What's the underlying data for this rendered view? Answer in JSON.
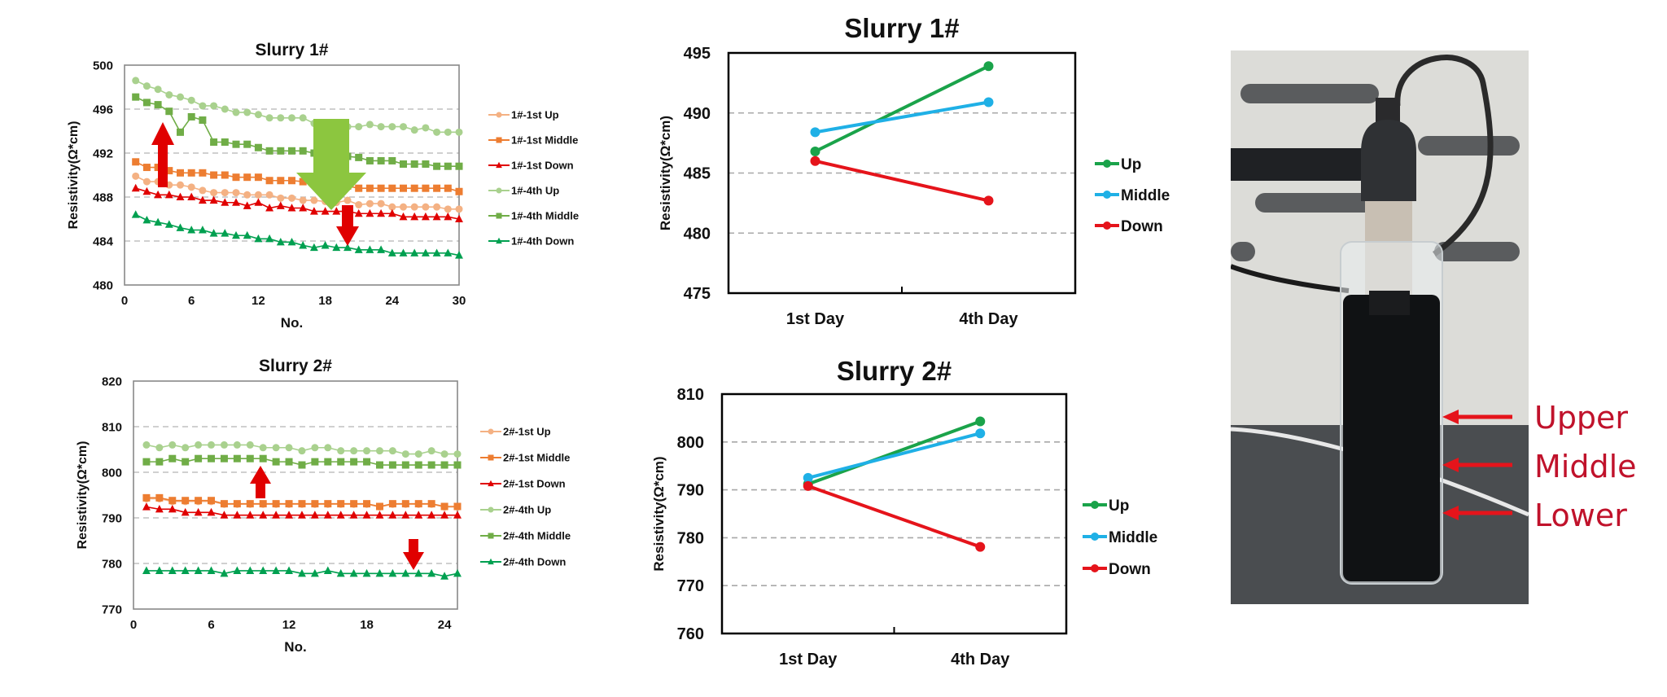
{
  "chart_data": [
    {
      "id": "tl",
      "type": "line",
      "title": "Slurry 1#",
      "xlabel": "No.",
      "ylabel": "Resistivity(Ω*cm)",
      "xlim": [
        0,
        30
      ],
      "ylim": [
        480,
        500
      ],
      "xticks": [
        0,
        6,
        12,
        18,
        24,
        30
      ],
      "yticks": [
        480,
        484,
        488,
        492,
        496,
        500
      ],
      "grid": "horizontal-dashed",
      "legend_position": "right",
      "x": [
        1,
        2,
        3,
        4,
        5,
        6,
        7,
        8,
        9,
        10,
        11,
        12,
        13,
        14,
        15,
        16,
        17,
        18,
        19,
        20,
        21,
        22,
        23,
        24,
        25,
        26,
        27,
        28,
        29,
        30
      ],
      "series": [
        {
          "name": "1#-1st Up",
          "color": "#f4b183",
          "marker": "circle",
          "values": [
            489.9,
            489.4,
            489.4,
            489.1,
            489.1,
            488.9,
            488.6,
            488.4,
            488.4,
            488.4,
            488.2,
            488.2,
            488.2,
            487.9,
            487.9,
            487.7,
            487.7,
            487.6,
            487.5,
            487.7,
            487.3,
            487.4,
            487.4,
            487.1,
            487.1,
            487.1,
            487.1,
            487.1,
            486.9,
            486.9
          ]
        },
        {
          "name": "1#-1st Middle",
          "color": "#ed7d31",
          "marker": "square",
          "values": [
            491.2,
            490.7,
            490.7,
            490.4,
            490.2,
            490.2,
            490.2,
            490.0,
            490.0,
            489.8,
            489.8,
            489.8,
            489.5,
            489.5,
            489.5,
            489.4,
            489.5,
            489.3,
            489.1,
            489.0,
            488.8,
            488.8,
            488.8,
            488.8,
            488.8,
            488.8,
            488.8,
            488.8,
            488.8,
            488.5
          ]
        },
        {
          "name": "1#-1st Down",
          "color": "#e00000",
          "marker": "triangle",
          "values": [
            488.8,
            488.5,
            488.2,
            488.2,
            488.0,
            488.0,
            487.7,
            487.7,
            487.5,
            487.5,
            487.2,
            487.5,
            487.0,
            487.2,
            487.0,
            487.0,
            486.7,
            486.7,
            486.7,
            486.7,
            486.5,
            486.5,
            486.5,
            486.5,
            486.2,
            486.2,
            486.2,
            486.2,
            486.2,
            486.0
          ]
        },
        {
          "name": "1#-4th Up",
          "color": "#a9d18e",
          "marker": "circle",
          "values": [
            498.6,
            498.1,
            497.8,
            497.3,
            497.1,
            496.8,
            496.3,
            496.3,
            496.0,
            495.7,
            495.7,
            495.5,
            495.2,
            495.2,
            495.2,
            495.2,
            494.7,
            494.7,
            494.5,
            494.4,
            494.4,
            494.6,
            494.4,
            494.4,
            494.4,
            494.1,
            494.3,
            493.9,
            493.9,
            493.9
          ]
        },
        {
          "name": "1#-4th Middle",
          "color": "#70ad47",
          "marker": "square",
          "values": [
            497.1,
            496.6,
            496.4,
            495.8,
            493.9,
            495.3,
            495.0,
            493.0,
            493.0,
            492.8,
            492.8,
            492.5,
            492.2,
            492.2,
            492.2,
            492.2,
            492.0,
            492.0,
            491.8,
            491.7,
            491.6,
            491.3,
            491.3,
            491.3,
            491.0,
            491.0,
            491.0,
            490.8,
            490.8,
            490.8
          ]
        },
        {
          "name": "1#-4th Down",
          "color": "#00a050",
          "marker": "triangle",
          "values": [
            486.4,
            485.9,
            485.7,
            485.5,
            485.2,
            485.0,
            485.0,
            484.7,
            484.7,
            484.5,
            484.5,
            484.2,
            484.2,
            483.9,
            483.9,
            483.6,
            483.4,
            483.6,
            483.4,
            483.4,
            483.2,
            483.2,
            483.2,
            482.9,
            482.9,
            482.9,
            482.9,
            482.9,
            482.9,
            482.7
          ]
        }
      ],
      "annotations": [
        "red-up-arrow",
        "green-down-arrow",
        "red-down-arrow"
      ]
    },
    {
      "id": "bl",
      "type": "line",
      "title": "Slurry 2#",
      "xlabel": "No.",
      "ylabel": "Resistivity(Ω*cm)",
      "xlim": [
        0,
        25
      ],
      "ylim": [
        770,
        820
      ],
      "xticks": [
        0,
        6,
        12,
        18,
        24
      ],
      "yticks": [
        770,
        780,
        790,
        800,
        810,
        820
      ],
      "grid": "horizontal-dashed",
      "legend_position": "right",
      "x": [
        1,
        2,
        3,
        4,
        5,
        6,
        7,
        8,
        9,
        10,
        11,
        12,
        13,
        14,
        15,
        16,
        17,
        18,
        19,
        20,
        21,
        22,
        23,
        24,
        25
      ],
      "series": [
        {
          "name": "2#-1st Up",
          "color": "#f4b183",
          "marker": "circle",
          "values": [
            794.2,
            794.2,
            793.6,
            793.6,
            793.6,
            793.6,
            793.0,
            793.0,
            793.0,
            793.0,
            793.0,
            793.0,
            793.0,
            793.0,
            793.0,
            793.0,
            793.0,
            793.0,
            792.4,
            793.0,
            793.0,
            793.0,
            793.0,
            792.4,
            792.4
          ]
        },
        {
          "name": "2#-1st Middle",
          "color": "#ed7d31",
          "marker": "square",
          "values": [
            794.4,
            794.4,
            793.8,
            793.8,
            793.8,
            793.8,
            793.1,
            793.1,
            793.1,
            793.1,
            793.1,
            793.1,
            793.1,
            793.1,
            793.1,
            793.1,
            793.1,
            793.1,
            792.5,
            793.1,
            793.1,
            793.1,
            793.1,
            792.5,
            792.5
          ]
        },
        {
          "name": "2#-1st Down",
          "color": "#e00000",
          "marker": "triangle",
          "values": [
            792.4,
            791.9,
            791.9,
            791.2,
            791.2,
            791.2,
            790.6,
            790.6,
            790.6,
            790.6,
            790.6,
            790.6,
            790.6,
            790.6,
            790.6,
            790.6,
            790.6,
            790.6,
            790.6,
            790.6,
            790.6,
            790.6,
            790.6,
            790.6,
            790.6
          ]
        },
        {
          "name": "2#-4th Up",
          "color": "#a9d18e",
          "marker": "circle",
          "values": [
            806.0,
            805.4,
            806.0,
            805.4,
            806.0,
            806.0,
            806.0,
            806.0,
            806.0,
            805.4,
            805.4,
            805.4,
            804.7,
            805.4,
            805.4,
            804.7,
            804.7,
            804.7,
            804.7,
            804.7,
            804.0,
            804.0,
            804.7,
            804.0,
            804.0
          ]
        },
        {
          "name": "2#-4th Middle",
          "color": "#70ad47",
          "marker": "square",
          "values": [
            802.3,
            802.3,
            803.0,
            802.3,
            803.0,
            803.0,
            803.0,
            803.0,
            803.0,
            803.0,
            802.3,
            802.3,
            801.6,
            802.3,
            802.3,
            802.3,
            802.3,
            802.3,
            801.6,
            801.6,
            801.6,
            801.6,
            801.6,
            801.6,
            801.6
          ]
        },
        {
          "name": "2#-4th Down",
          "color": "#00a050",
          "marker": "triangle",
          "values": [
            778.4,
            778.4,
            778.4,
            778.4,
            778.4,
            778.4,
            777.8,
            778.4,
            778.4,
            778.4,
            778.4,
            778.4,
            777.8,
            777.8,
            778.4,
            777.8,
            777.8,
            777.8,
            777.8,
            777.8,
            777.8,
            777.8,
            777.8,
            777.2,
            777.8
          ]
        }
      ],
      "annotations": [
        "red-up-arrow",
        "red-down-arrow"
      ]
    },
    {
      "id": "tm",
      "type": "line",
      "title": "Slurry 1#",
      "xlabel": "",
      "ylabel": "Resistivity(Ω*cm)",
      "categories": [
        "1st Day",
        "4th Day"
      ],
      "ylim": [
        475,
        495
      ],
      "yticks": [
        475,
        480,
        485,
        490,
        495
      ],
      "grid": "horizontal-dashed",
      "legend_position": "right",
      "series": [
        {
          "name": "Up",
          "color": "#1aa34a",
          "values": [
            486.8,
            493.9
          ]
        },
        {
          "name": "Middle",
          "color": "#1fb0e6",
          "values": [
            488.4,
            490.9
          ]
        },
        {
          "name": "Down",
          "color": "#e5141b",
          "values": [
            486.0,
            482.7
          ]
        }
      ]
    },
    {
      "id": "bm",
      "type": "line",
      "title": "Slurry 2#",
      "xlabel": "",
      "ylabel": "Resistivity(Ω*cm)",
      "categories": [
        "1st Day",
        "4th Day"
      ],
      "ylim": [
        760,
        810
      ],
      "yticks": [
        760,
        770,
        780,
        790,
        800,
        810
      ],
      "grid": "horizontal-dashed",
      "legend_position": "right",
      "series": [
        {
          "name": "Up",
          "color": "#1aa34a",
          "values": [
            791.2,
            804.3
          ]
        },
        {
          "name": "Middle",
          "color": "#1fb0e6",
          "values": [
            792.5,
            801.8
          ]
        },
        {
          "name": "Down",
          "color": "#e5141b",
          "values": [
            790.8,
            778.1
          ]
        }
      ]
    }
  ],
  "photo": {
    "description": "probe-in-slurry-vial-photo",
    "labels": [
      "Upper",
      "Middle",
      "Lower"
    ],
    "label_color": "#c0122b"
  }
}
